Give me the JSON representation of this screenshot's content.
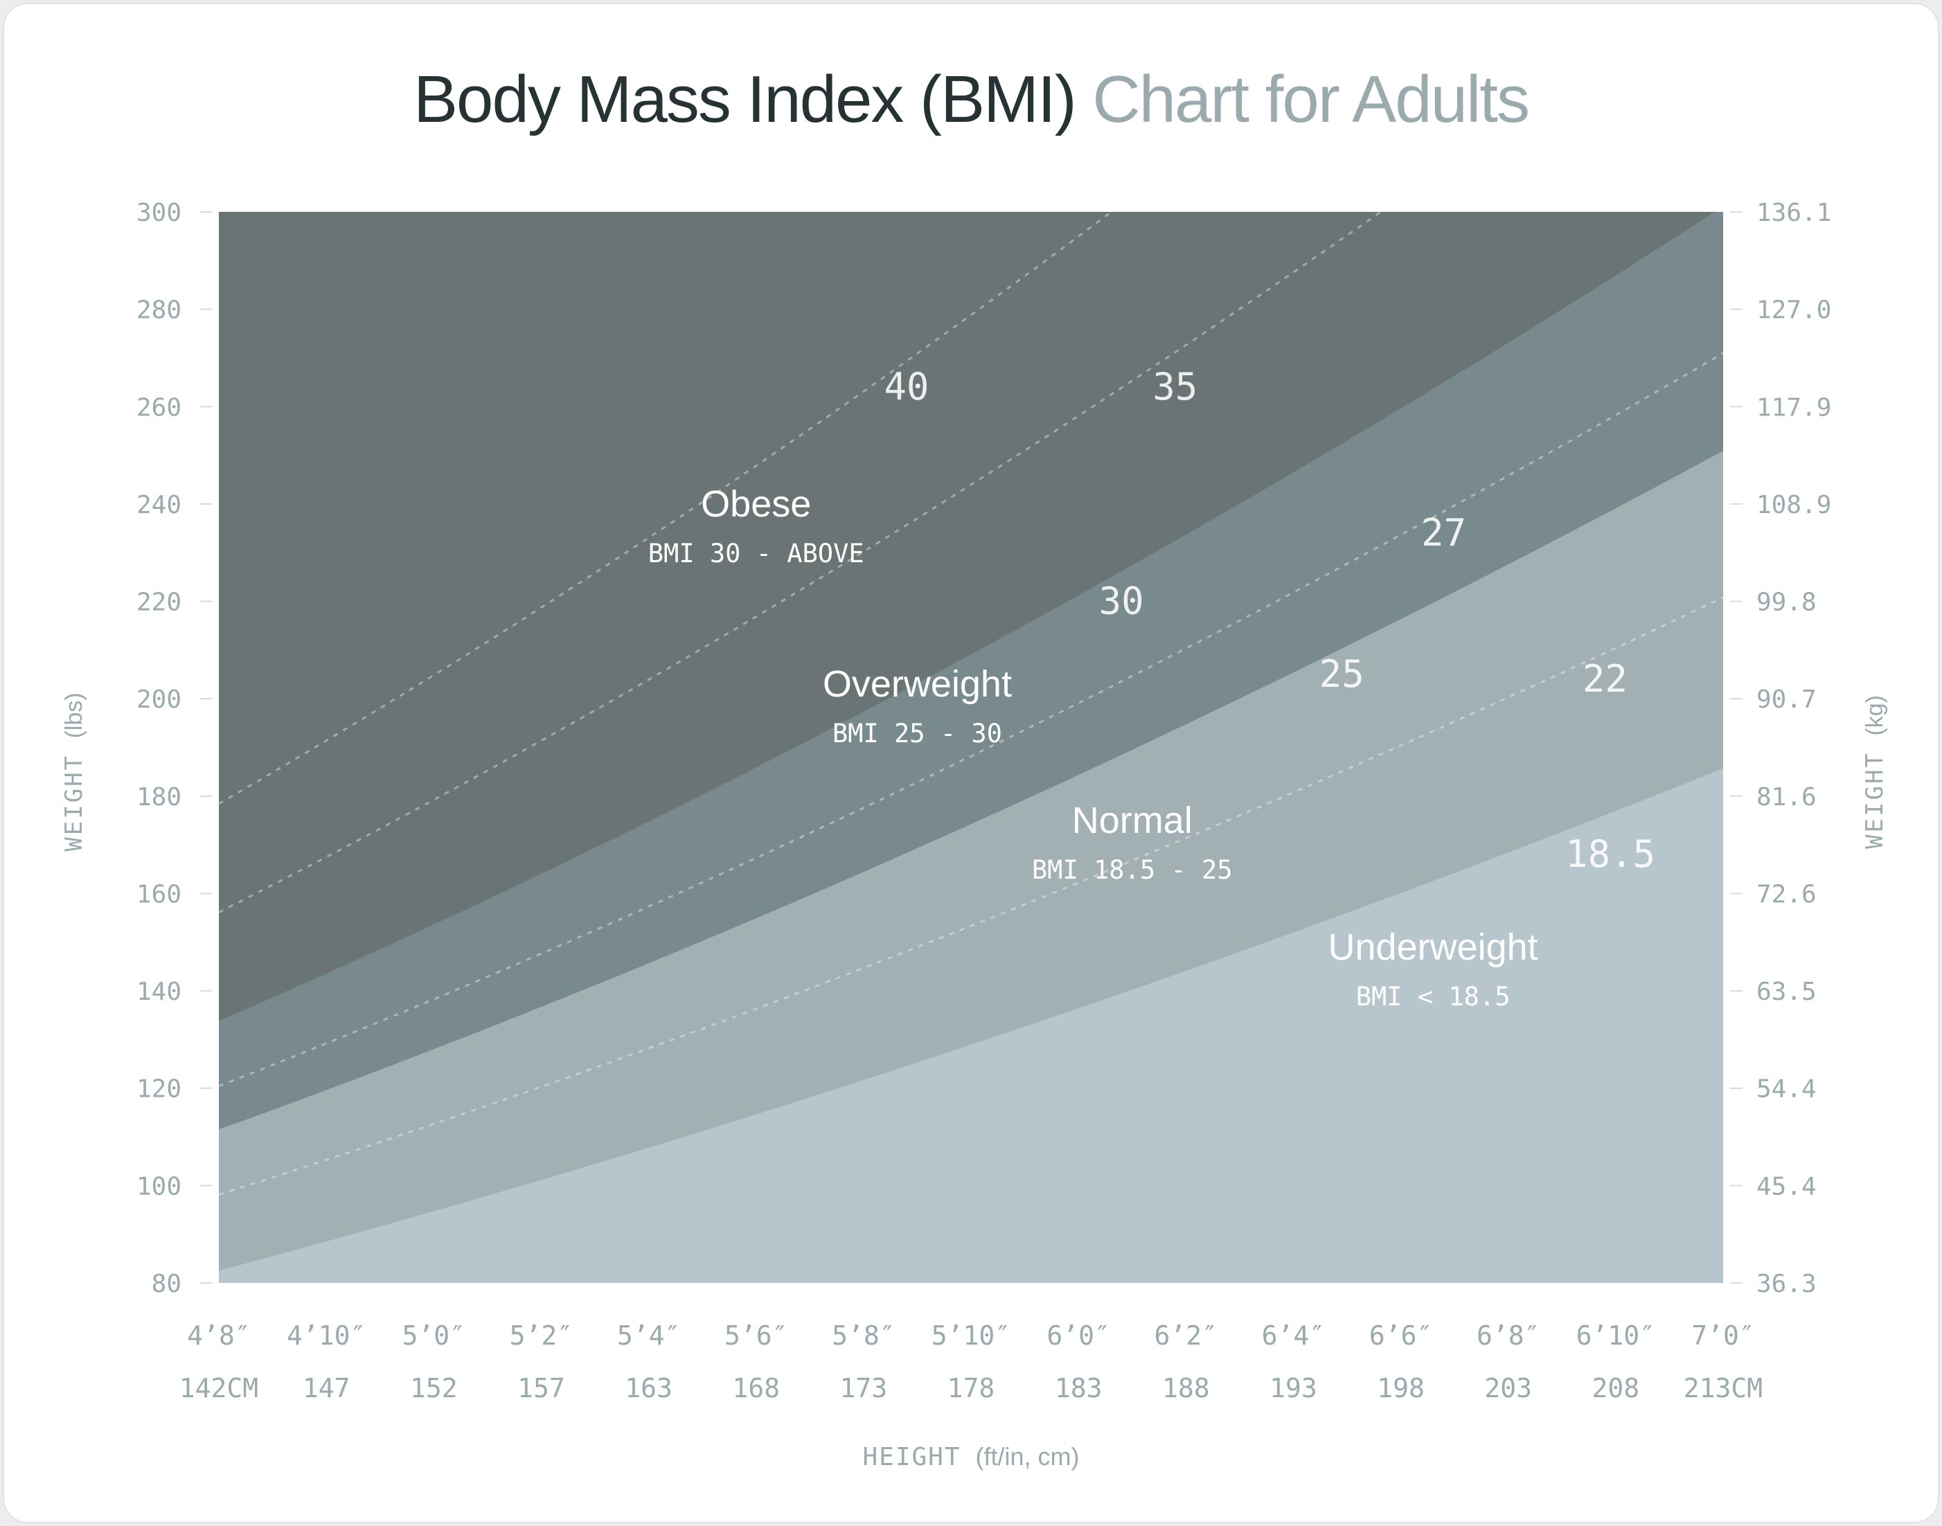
{
  "title": {
    "main": "Body Mass Index (BMI)",
    "accent": "Chart for Adults"
  },
  "axes": {
    "left_label_main": "WEIGHT",
    "left_label_unit": "(lbs)",
    "right_label_main": "WEIGHT",
    "right_label_unit": "(kg)",
    "bottom_label_main": "HEIGHT",
    "bottom_label_unit": "(ft/in, cm)"
  },
  "colors": {
    "obese": "#6b7475",
    "overweight": "#788a8e",
    "normal": "#a2afb3",
    "underweight": "#b7c6cc",
    "axis_text": "#9aaaad",
    "title_dark": "#263234",
    "title_light": "#9aaaad"
  },
  "chart_data": {
    "type": "area",
    "x_unit": "height (in)",
    "y_unit": "weight (lbs)",
    "xlim": [
      56,
      84
    ],
    "ylim": [
      80,
      300
    ],
    "x_ticks": [
      {
        "value": 56,
        "ft": "4’8″",
        "cm": "142CM"
      },
      {
        "value": 58,
        "ft": "4’10″",
        "cm": "147"
      },
      {
        "value": 60,
        "ft": "5’0″",
        "cm": "152"
      },
      {
        "value": 62,
        "ft": "5’2″",
        "cm": "157"
      },
      {
        "value": 64,
        "ft": "5’4″",
        "cm": "163"
      },
      {
        "value": 66,
        "ft": "5’6″",
        "cm": "168"
      },
      {
        "value": 68,
        "ft": "5’8″",
        "cm": "173"
      },
      {
        "value": 70,
        "ft": "5’10″",
        "cm": "178"
      },
      {
        "value": 72,
        "ft": "6’0″",
        "cm": "183"
      },
      {
        "value": 74,
        "ft": "6’2″",
        "cm": "188"
      },
      {
        "value": 76,
        "ft": "6’4″",
        "cm": "193"
      },
      {
        "value": 78,
        "ft": "6’6″",
        "cm": "198"
      },
      {
        "value": 80,
        "ft": "6’8″",
        "cm": "203"
      },
      {
        "value": 82,
        "ft": "6’10″",
        "cm": "208"
      },
      {
        "value": 84,
        "ft": "7’0″",
        "cm": "213CM"
      }
    ],
    "y_ticks_lbs": [
      "300",
      "280",
      "260",
      "240",
      "220",
      "200",
      "180",
      "160",
      "140",
      "120",
      "100",
      "80"
    ],
    "y_ticks_kg": [
      "136.1",
      "127.0",
      "117.9",
      "108.9",
      "99.8",
      "90.7",
      "81.6",
      "72.6",
      "63.5",
      "54.4",
      "45.4",
      "36.3"
    ],
    "categories": [
      {
        "name": "Obese",
        "range": "BMI 30 - ABOVE",
        "bmi_min": 30,
        "label_x": 66,
        "label_y": 240
      },
      {
        "name": "Overweight",
        "range": "BMI 25 - 30",
        "bmi_min": 25,
        "bmi_max": 30,
        "label_x": 69,
        "label_y": 203
      },
      {
        "name": "Normal",
        "range": "BMI 18.5 - 25",
        "bmi_min": 18.5,
        "bmi_max": 25,
        "label_x": 73,
        "label_y": 175
      },
      {
        "name": "Underweight",
        "range": "BMI < 18.5",
        "bmi_max": 18.5,
        "label_x": 78.6,
        "label_y": 149
      }
    ],
    "boundary_lines": [
      {
        "bmi": 30,
        "label": "30",
        "label_x": 72.8,
        "label_y": 220
      },
      {
        "bmi": 25,
        "label": "25",
        "label_x": 76.9,
        "label_y": 205
      },
      {
        "bmi": 18.5,
        "label": "18.5",
        "label_x": 81.9,
        "label_y": 168
      }
    ],
    "dashed_lines": [
      {
        "bmi": 40,
        "label": "40",
        "label_x": 68.8,
        "label_y": 264
      },
      {
        "bmi": 35,
        "label": "35",
        "label_x": 73.8,
        "label_y": 264
      },
      {
        "bmi": 27,
        "label": "27",
        "label_x": 78.8,
        "label_y": 234
      },
      {
        "bmi": 22,
        "label": "22",
        "label_x": 81.8,
        "label_y": 204
      }
    ]
  }
}
